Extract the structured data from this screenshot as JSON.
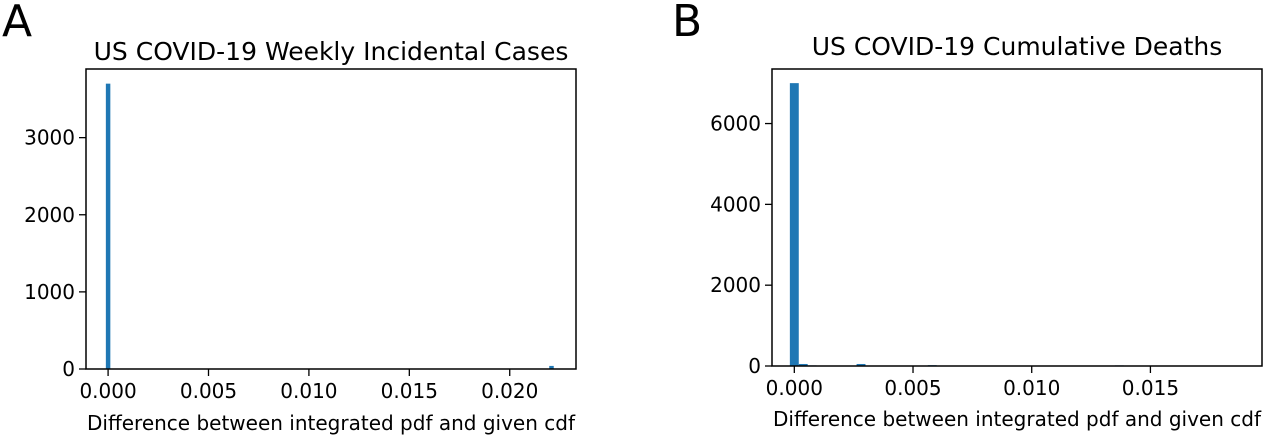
{
  "chart_data": [
    {
      "panel": "A",
      "type": "bar",
      "title": "US COVID-19 Weekly Incidental Cases",
      "xlabel": "Difference between integrated pdf and given cdf",
      "ylabel": "",
      "xlim": [
        -0.0011,
        0.0233
      ],
      "ylim": [
        0,
        3890
      ],
      "xticks": [
        0.0,
        0.005,
        0.01,
        0.015,
        0.02
      ],
      "xtick_labels": [
        "0.000",
        "0.005",
        "0.010",
        "0.015",
        "0.020"
      ],
      "yticks": [
        0,
        1000,
        2000,
        3000
      ],
      "ytick_labels": [
        "0",
        "1000",
        "2000",
        "3000"
      ],
      "bin_width": 0.000223,
      "bars": [
        {
          "x": 0.0,
          "value": 3700
        },
        {
          "x": 0.02208,
          "value": 40
        }
      ],
      "color": "#1f77b4",
      "grid": false
    },
    {
      "panel": "B",
      "type": "bar",
      "title": "US COVID-19 Cumulative Deaths",
      "xlabel": "Difference between integrated pdf and given cdf",
      "ylabel": "",
      "xlim": [
        -0.00094,
        0.0197
      ],
      "ylim": [
        0,
        7350
      ],
      "xticks": [
        0.0,
        0.005,
        0.01,
        0.015
      ],
      "xtick_labels": [
        "0.000",
        "0.005",
        "0.010",
        "0.015"
      ],
      "yticks": [
        0,
        2000,
        4000,
        6000
      ],
      "ytick_labels": [
        "0",
        "2000",
        "4000",
        "6000"
      ],
      "bin_width": 0.000375,
      "bars": [
        {
          "x": 0.0,
          "value": 7000
        },
        {
          "x": 0.000375,
          "value": 50
        },
        {
          "x": 0.00075,
          "value": 15
        },
        {
          "x": 0.0015,
          "value": 8
        },
        {
          "x": 0.00281,
          "value": 50
        },
        {
          "x": 0.00319,
          "value": 10
        },
        {
          "x": 0.00469,
          "value": 8
        },
        {
          "x": 0.00581,
          "value": 20
        },
        {
          "x": 0.00619,
          "value": 10
        },
        {
          "x": 0.00769,
          "value": 5
        },
        {
          "x": 0.00919,
          "value": 8
        },
        {
          "x": 0.01069,
          "value": 5
        },
        {
          "x": 0.01219,
          "value": 5
        },
        {
          "x": 0.01369,
          "value": 15
        },
        {
          "x": 0.01406,
          "value": 8
        },
        {
          "x": 0.01556,
          "value": 5
        },
        {
          "x": 0.01706,
          "value": 5
        },
        {
          "x": 0.01856,
          "value": 8
        }
      ],
      "color": "#1f77b4",
      "grid": false
    }
  ]
}
